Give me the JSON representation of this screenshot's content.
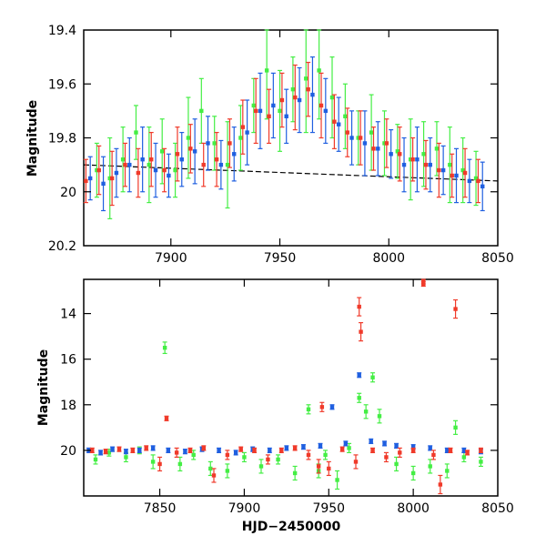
{
  "chart_data": [
    {
      "type": "scatter",
      "title": "",
      "xlabel": "",
      "ylabel": "Magnitude",
      "xlim": [
        7860,
        8050
      ],
      "ylim": [
        20.2,
        19.4
      ],
      "y_inverted": true,
      "grid": false,
      "legend": "none",
      "xticks": [
        7900,
        7950,
        8000,
        8050
      ],
      "yticks": [
        19.4,
        19.6,
        19.8,
        20,
        20.2
      ],
      "trend": {
        "x": [
          7860,
          8050
        ],
        "y": [
          19.9,
          19.96
        ],
        "color": "#000000"
      },
      "series": [
        {
          "color": "#44ee44",
          "x": [
            7866,
            7872,
            7878,
            7884,
            7890,
            7896,
            7902,
            7908,
            7914,
            7920,
            7926,
            7932,
            7938,
            7944,
            7950,
            7956,
            7962,
            7968,
            7974,
            7980,
            7986,
            7992,
            7998,
            8004,
            8010,
            8016,
            8022,
            8028,
            8034,
            8040
          ],
          "y": [
            19.92,
            19.95,
            19.88,
            19.78,
            19.9,
            19.85,
            19.92,
            19.8,
            19.7,
            19.82,
            19.9,
            19.8,
            19.68,
            19.55,
            19.7,
            19.62,
            19.58,
            19.55,
            19.65,
            19.72,
            19.8,
            19.78,
            19.82,
            19.85,
            19.88,
            19.86,
            19.84,
            19.9,
            19.92,
            19.95
          ],
          "err": [
            0.1,
            0.15,
            0.12,
            0.1,
            0.14,
            0.12,
            0.1,
            0.15,
            0.12,
            0.1,
            0.16,
            0.12,
            0.1,
            0.18,
            0.15,
            0.12,
            0.2,
            0.18,
            0.15,
            0.12,
            0.1,
            0.14,
            0.12,
            0.1,
            0.15,
            0.12,
            0.1,
            0.14,
            0.12,
            0.1
          ]
        },
        {
          "color": "#1f5fe0",
          "x": [
            7863,
            7869,
            7875,
            7881,
            7887,
            7893,
            7899,
            7905,
            7911,
            7917,
            7923,
            7929,
            7935,
            7941,
            7947,
            7953,
            7959,
            7965,
            7971,
            7977,
            7983,
            7989,
            7995,
            8001,
            8007,
            8013,
            8019,
            8025,
            8031,
            8037,
            8043
          ],
          "y": [
            19.95,
            19.97,
            19.93,
            19.9,
            19.88,
            19.92,
            19.94,
            19.88,
            19.85,
            19.82,
            19.9,
            19.86,
            19.78,
            19.7,
            19.68,
            19.72,
            19.66,
            19.64,
            19.7,
            19.75,
            19.8,
            19.82,
            19.84,
            19.86,
            19.9,
            19.88,
            19.9,
            19.92,
            19.94,
            19.96,
            19.98
          ],
          "err": [
            0.08,
            0.1,
            0.09,
            0.1,
            0.12,
            0.1,
            0.08,
            0.1,
            0.12,
            0.1,
            0.09,
            0.1,
            0.12,
            0.14,
            0.12,
            0.1,
            0.12,
            0.14,
            0.12,
            0.1,
            0.1,
            0.12,
            0.1,
            0.09,
            0.1,
            0.12,
            0.1,
            0.09,
            0.1,
            0.08,
            0.09
          ]
        },
        {
          "color": "#f03a2a",
          "x": [
            7861,
            7867,
            7873,
            7879,
            7885,
            7891,
            7897,
            7903,
            7909,
            7915,
            7921,
            7927,
            7933,
            7939,
            7945,
            7951,
            7957,
            7963,
            7969,
            7975,
            7981,
            7987,
            7993,
            7999,
            8005,
            8011,
            8017,
            8023,
            8029,
            8035,
            8041
          ],
          "y": [
            19.96,
            19.92,
            19.95,
            19.9,
            19.93,
            19.88,
            19.92,
            19.86,
            19.84,
            19.9,
            19.88,
            19.82,
            19.76,
            19.7,
            19.72,
            19.66,
            19.65,
            19.62,
            19.68,
            19.74,
            19.78,
            19.8,
            19.84,
            19.82,
            19.86,
            19.88,
            19.9,
            19.92,
            19.94,
            19.93,
            19.96
          ],
          "err": [
            0.08,
            0.09,
            0.1,
            0.08,
            0.09,
            0.1,
            0.08,
            0.1,
            0.09,
            0.08,
            0.1,
            0.09,
            0.1,
            0.12,
            0.1,
            0.1,
            0.12,
            0.1,
            0.12,
            0.1,
            0.09,
            0.1,
            0.08,
            0.09,
            0.1,
            0.08,
            0.09,
            0.1,
            0.08,
            0.09,
            0.08
          ]
        }
      ]
    },
    {
      "type": "scatter",
      "title": "",
      "xlabel": "HJD−2450000",
      "ylabel": "Magnitude",
      "xlim": [
        7805,
        8050
      ],
      "ylim": [
        22,
        12.5
      ],
      "y_inverted": true,
      "grid": false,
      "legend": "none",
      "xticks": [
        7850,
        7900,
        7950,
        8000,
        8050
      ],
      "yticks": [
        14,
        16,
        18,
        20
      ],
      "series": [
        {
          "color": "#44ee44",
          "x": [
            7812,
            7820,
            7830,
            7838,
            7846,
            7853,
            7862,
            7870,
            7880,
            7890,
            7900,
            7910,
            7920,
            7930,
            7938,
            7944,
            7948,
            7955,
            7962,
            7968,
            7972,
            7976,
            7980,
            7990,
            8000,
            8010,
            8020,
            8025,
            8030,
            8040
          ],
          "y": [
            20.4,
            20.1,
            20.3,
            20.0,
            20.5,
            15.5,
            20.6,
            20.2,
            20.8,
            20.9,
            20.3,
            20.7,
            20.4,
            21.0,
            18.2,
            20.9,
            20.2,
            21.3,
            19.9,
            17.7,
            18.3,
            16.8,
            18.5,
            20.6,
            21.0,
            20.7,
            20.9,
            19.0,
            20.3,
            20.5
          ],
          "err": [
            0.2,
            0.15,
            0.2,
            0.15,
            0.3,
            0.25,
            0.3,
            0.2,
            0.3,
            0.3,
            0.2,
            0.3,
            0.2,
            0.3,
            0.2,
            0.3,
            0.2,
            0.4,
            0.2,
            0.2,
            0.3,
            0.2,
            0.3,
            0.3,
            0.3,
            0.3,
            0.3,
            0.3,
            0.2,
            0.2
          ]
        },
        {
          "color": "#1f5fe0",
          "x": [
            7808,
            7815,
            7822,
            7830,
            7838,
            7846,
            7855,
            7865,
            7875,
            7885,
            7895,
            7905,
            7915,
            7925,
            7935,
            7945,
            7952,
            7960,
            7968,
            7975,
            7983,
            7990,
            8000,
            8010,
            8020,
            8030,
            8040
          ],
          "y": [
            20.0,
            20.1,
            19.95,
            20.05,
            20.0,
            19.9,
            20.0,
            20.05,
            19.95,
            20.0,
            20.1,
            19.95,
            20.0,
            19.9,
            19.85,
            19.8,
            18.1,
            19.7,
            16.7,
            19.6,
            19.7,
            19.8,
            19.85,
            19.9,
            20.0,
            20.0,
            20.05
          ],
          "err": [
            0.1,
            0.1,
            0.1,
            0.1,
            0.1,
            0.1,
            0.1,
            0.1,
            0.1,
            0.1,
            0.1,
            0.1,
            0.1,
            0.1,
            0.1,
            0.1,
            0.1,
            0.1,
            0.1,
            0.1,
            0.1,
            0.1,
            0.1,
            0.1,
            0.1,
            0.1,
            0.1
          ]
        },
        {
          "color": "#f03a2a",
          "x": [
            7810,
            7818,
            7826,
            7834,
            7842,
            7850,
            7854,
            7860,
            7868,
            7876,
            7882,
            7890,
            7898,
            7906,
            7914,
            7922,
            7930,
            7938,
            7944,
            7946,
            7950,
            7958,
            7966,
            7968,
            7969,
            7976,
            7984,
            7992,
            8000,
            8006,
            8006,
            8012,
            8016,
            8022,
            8025,
            8032,
            8040
          ],
          "y": [
            20.0,
            20.05,
            19.95,
            20.0,
            19.9,
            20.6,
            18.6,
            20.1,
            20.0,
            19.9,
            21.1,
            20.2,
            19.95,
            20.0,
            20.4,
            20.0,
            19.9,
            20.2,
            20.7,
            18.1,
            20.8,
            19.95,
            20.5,
            13.7,
            14.8,
            20.0,
            20.3,
            20.1,
            20.0,
            12.6,
            12.7,
            20.2,
            21.5,
            20.0,
            13.8,
            20.1,
            20.0
          ],
          "err": [
            0.1,
            0.1,
            0.1,
            0.1,
            0.1,
            0.3,
            0.1,
            0.2,
            0.1,
            0.1,
            0.3,
            0.2,
            0.1,
            0.1,
            0.2,
            0.1,
            0.1,
            0.2,
            0.3,
            0.2,
            0.3,
            0.1,
            0.3,
            0.4,
            0.4,
            0.1,
            0.2,
            0.2,
            0.1,
            0.1,
            0.1,
            0.2,
            0.4,
            0.1,
            0.4,
            0.1,
            0.1
          ]
        }
      ]
    }
  ]
}
